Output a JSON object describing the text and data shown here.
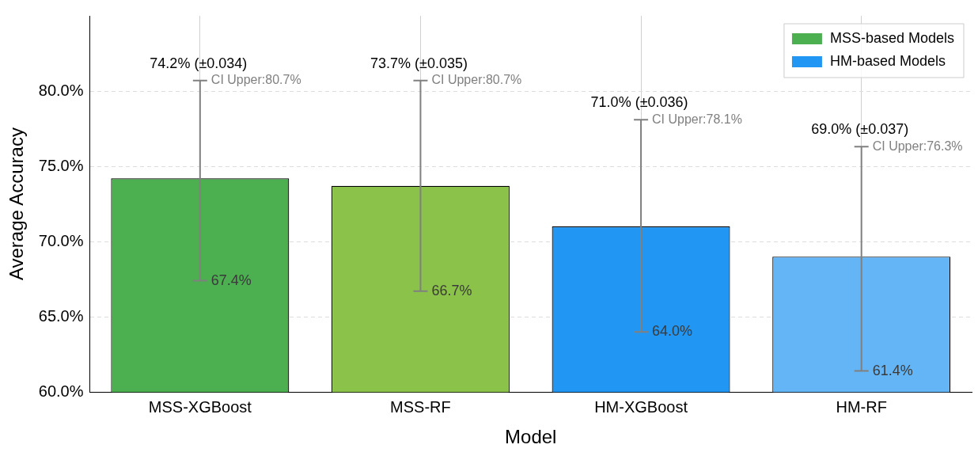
{
  "chart_data": {
    "type": "bar",
    "xlabel": "Model",
    "ylabel": "Average Accuracy",
    "categories": [
      "MSS-XGBoost",
      "MSS-RF",
      "HM-XGBoost",
      "HM-RF"
    ],
    "series": [
      {
        "name": "MSS-based Models",
        "color": "#4caf50",
        "colors": [
          "#4caf50",
          "#8bc34a",
          null,
          null
        ],
        "values": [
          74.2,
          73.7,
          null,
          null
        ],
        "errors": [
          [
            67.4,
            80.7
          ],
          [
            66.7,
            80.7
          ],
          null,
          null
        ]
      },
      {
        "name": "HM-based Models",
        "color": "#2196f3",
        "colors": [
          null,
          null,
          "#2196f3",
          "#64b5f6"
        ],
        "values": [
          null,
          null,
          71.0,
          69.0
        ],
        "errors": [
          null,
          null,
          [
            64.0,
            78.1
          ],
          [
            61.4,
            76.3
          ]
        ]
      }
    ],
    "ylim": [
      60,
      85
    ],
    "yticks": [
      {
        "value": 60,
        "label": "60.0%"
      },
      {
        "value": 65,
        "label": "65.0%"
      },
      {
        "value": 70,
        "label": "70.0%"
      },
      {
        "value": 75,
        "label": "75.0%"
      },
      {
        "value": 80,
        "label": "80.0%"
      }
    ],
    "grid": true,
    "legend": "top right",
    "annotations": [
      {
        "text": "74.2% (±0.034)",
        "x": "MSS-XGBoost",
        "y": 80.7
      },
      {
        "text": "CI Upper:80.7%",
        "x": "MSS-XGBoost",
        "y": 80.7
      },
      {
        "text": "67.4%",
        "x": "MSS-XGBoost",
        "y": 67.4
      },
      {
        "text": "73.7% (±0.035)",
        "x": "MSS-RF",
        "y": 80.7
      },
      {
        "text": "CI Upper:80.7%",
        "x": "MSS-RF",
        "y": 80.7
      },
      {
        "text": "66.7%",
        "x": "MSS-RF",
        "y": 66.7
      },
      {
        "text": "71.0% (±0.036)",
        "x": "HM-XGBoost",
        "y": 78.1
      },
      {
        "text": "CI Upper:78.1%",
        "x": "HM-XGBoost",
        "y": 78.1
      },
      {
        "text": "64.0%",
        "x": "HM-XGBoost",
        "y": 64.0
      },
      {
        "text": "69.0% (±0.037)",
        "x": "HM-RF",
        "y": 76.3
      },
      {
        "text": "CI Upper:76.3%",
        "x": "HM-RF",
        "y": 76.3
      },
      {
        "text": "61.4%",
        "x": "HM-RF",
        "y": 61.4
      }
    ]
  }
}
